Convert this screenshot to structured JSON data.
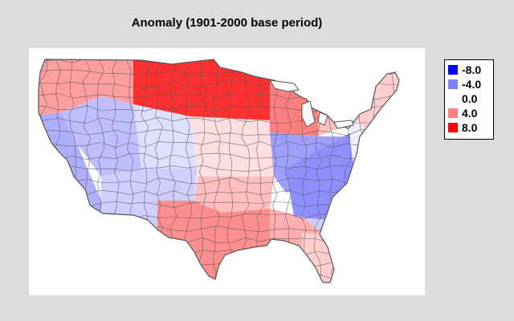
{
  "title": "Anomaly (1901-2000 base period)",
  "legend": {
    "entries": [
      {
        "label": "-8.0",
        "color": "#0000ff"
      },
      {
        "label": "-4.0",
        "color": "#8080ff"
      },
      {
        "label": "0.0",
        "color": "#ffffff"
      },
      {
        "label": "4.0",
        "color": "#ff8080"
      },
      {
        "label": "8.0",
        "color": "#ff0000"
      }
    ]
  },
  "map": {
    "region": "contiguous-united-states",
    "divisions": "climate-divisions",
    "outline_color": "#555555",
    "scale_min": -8.0,
    "scale_max": 8.0,
    "zones": [
      {
        "name": "northern-plains",
        "anomaly": 6.5
      },
      {
        "name": "upper-midwest",
        "anomaly": 4.0
      },
      {
        "name": "northwest",
        "anomaly": 3.0
      },
      {
        "name": "california",
        "anomaly": -2.5
      },
      {
        "name": "great-basin",
        "anomaly": -2.0
      },
      {
        "name": "southwest",
        "anomaly": -1.5
      },
      {
        "name": "rockies",
        "anomaly": -1.0
      },
      {
        "name": "central-plains",
        "anomaly": 1.0
      },
      {
        "name": "southern-plains",
        "anomaly": 2.0
      },
      {
        "name": "texas",
        "anomaly": 3.5
      },
      {
        "name": "gulf-coast",
        "anomaly": 2.5
      },
      {
        "name": "ohio-valley",
        "anomaly": -3.0
      },
      {
        "name": "appalachians",
        "anomaly": -3.5
      },
      {
        "name": "southeast",
        "anomaly": -1.5
      },
      {
        "name": "florida",
        "anomaly": 1.5
      },
      {
        "name": "mid-atlantic",
        "anomaly": -0.5
      },
      {
        "name": "great-lakes",
        "anomaly": 2.0
      },
      {
        "name": "new-england",
        "anomaly": 1.5
      }
    ]
  }
}
